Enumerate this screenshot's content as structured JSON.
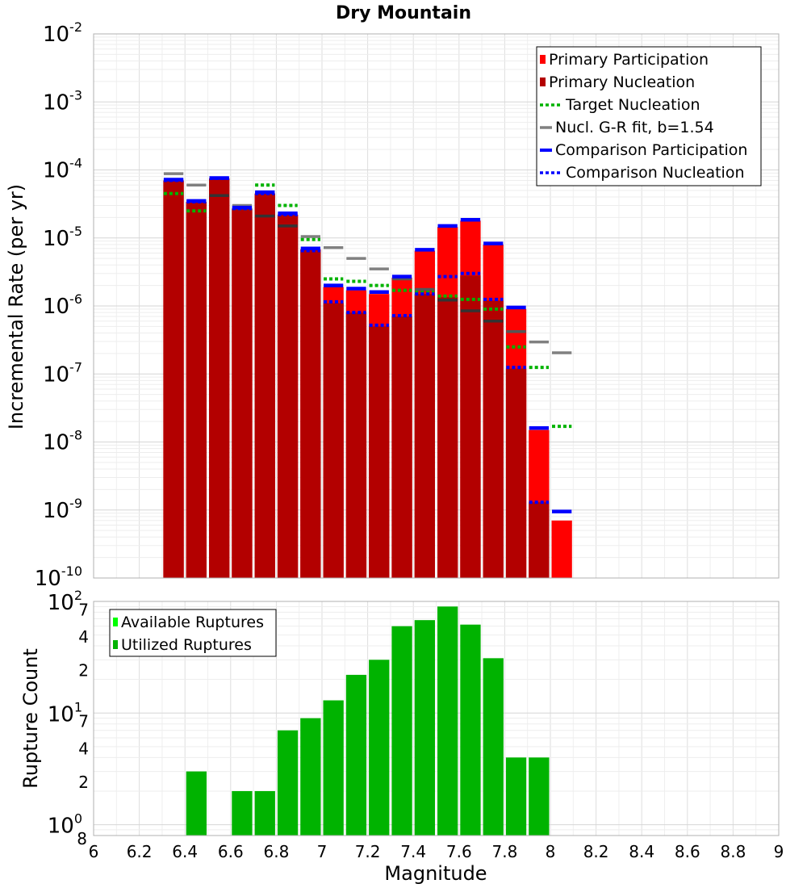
{
  "chart_data": [
    {
      "type": "bar",
      "title": "Dry Mountain",
      "ylabel": "Incremental Rate (per yr)",
      "y_scale": "log",
      "ylim": [
        1e-10,
        0.01
      ],
      "xlim": [
        6,
        9
      ],
      "grid": true,
      "legend_position": "top-right",
      "y_tick_labels": [
        "10^-10",
        "10^-9",
        "10^-8",
        "10^-7",
        "10^-6",
        "10^-5",
        "10^-4",
        "10^-3",
        "10^-2"
      ],
      "x": [
        6.35,
        6.45,
        6.55,
        6.65,
        6.75,
        6.85,
        6.95,
        7.05,
        7.15,
        7.25,
        7.35,
        7.45,
        7.55,
        7.65,
        7.75,
        7.85,
        7.95,
        8.05
      ],
      "series": [
        {
          "name": "Primary Participation",
          "style": "bar",
          "color": "#ff0000",
          "values": [
            7e-05,
            3.4e-05,
            7.5e-05,
            2.7e-05,
            4.5e-05,
            2.2e-05,
            6.8e-06,
            1.9e-06,
            1.7e-06,
            1.5e-06,
            2.6e-06,
            6.5e-06,
            1.45e-05,
            1.8e-05,
            8e-06,
            9e-07,
            1.5e-08,
            7e-10
          ]
        },
        {
          "name": "Primary Nucleation",
          "style": "bar",
          "color": "#b30000",
          "values": [
            7e-05,
            3.4e-05,
            7.5e-05,
            2.7e-05,
            4.5e-05,
            2.2e-05,
            6.8e-06,
            1.1e-06,
            8e-07,
            5e-07,
            7e-07,
            1.5e-06,
            1.35e-06,
            2.8e-06,
            1.2e-06,
            1.2e-07,
            1.3e-09,
            null
          ]
        },
        {
          "name": "Target Nucleation",
          "style": "dotted",
          "color": "#00b300",
          "values": [
            4.5e-05,
            2.5e-05,
            null,
            2.7e-05,
            6e-05,
            3e-05,
            9.5e-06,
            2.5e-06,
            2.3e-06,
            2e-06,
            1.7e-06,
            1.6e-06,
            1.4e-06,
            1.25e-06,
            9e-07,
            2.5e-07,
            1.25e-07,
            1.7e-08
          ]
        },
        {
          "name": "Nucl. G-R fit, b=1.54",
          "style": "solid",
          "color": "#808080",
          "values": [
            8.8e-05,
            6e-05,
            4.2e-05,
            3e-05,
            2.1e-05,
            1.5e-05,
            1.05e-05,
            7.2e-06,
            5e-06,
            3.5e-06,
            2.5e-06,
            1.75e-06,
            1.22e-06,
            8.5e-07,
            6e-07,
            4.2e-07,
            2.95e-07,
            2.05e-07
          ]
        },
        {
          "name": "Comparison Participation",
          "style": "solid-thick",
          "color": "#0000ff",
          "values": [
            7.2e-05,
            3.5e-05,
            7.6e-05,
            2.8e-05,
            4.7e-05,
            2.3e-05,
            7e-06,
            2e-06,
            1.8e-06,
            1.6e-06,
            2.7e-06,
            6.7e-06,
            1.5e-05,
            1.85e-05,
            8.3e-06,
            9.5e-07,
            1.6e-08,
            9.5e-10
          ]
        },
        {
          "name": "Comparison Nucleation",
          "style": "dotted",
          "color": "#0000ff",
          "values": [
            7e-05,
            3.4e-05,
            7.5e-05,
            2.7e-05,
            4.5e-05,
            2.2e-05,
            6.5e-06,
            1.15e-06,
            8e-07,
            5.2e-07,
            7.2e-07,
            1.5e-06,
            2.7e-06,
            3e-06,
            1.25e-06,
            1.25e-07,
            1.3e-09,
            null
          ]
        }
      ]
    },
    {
      "type": "bar",
      "title": "",
      "xlabel": "Magnitude",
      "ylabel": "Rupture Count",
      "y_scale": "log",
      "ylim": [
        0.8,
        100
      ],
      "xlim": [
        6,
        9
      ],
      "grid": true,
      "legend_position": "top-left",
      "x_tick_labels": [
        "6",
        "6.2",
        "6.4",
        "6.6",
        "6.8",
        "7",
        "7.2",
        "7.4",
        "7.6",
        "7.8",
        "8",
        "8.2",
        "8.4",
        "8.6",
        "8.8",
        "9"
      ],
      "y_tick_labels": [
        {
          "value": 1,
          "label": "10^0"
        },
        {
          "value": 2,
          "label": "2"
        },
        {
          "value": 4,
          "label": "4"
        },
        {
          "value": 7,
          "label": "7"
        },
        {
          "value": 10,
          "label": "10^1"
        },
        {
          "value": 20,
          "label": "2"
        },
        {
          "value": 40,
          "label": "4"
        },
        {
          "value": 70,
          "label": "7"
        },
        {
          "value": 100,
          "label": "10^2"
        },
        {
          "value": 0.8,
          "label": "8"
        }
      ],
      "x": [
        6.45,
        6.65,
        6.75,
        6.85,
        6.95,
        7.05,
        7.15,
        7.25,
        7.35,
        7.45,
        7.55,
        7.65,
        7.75,
        7.85,
        7.95
      ],
      "series": [
        {
          "name": "Available Ruptures",
          "color": "#00ff00",
          "values": [
            3,
            2,
            2,
            7,
            9,
            13,
            22,
            30,
            60,
            68,
            90,
            62,
            31,
            4,
            4
          ]
        },
        {
          "name": "Utilized Ruptures",
          "color": "#00b300",
          "values": [
            3,
            2,
            2,
            7,
            9,
            13,
            22,
            30,
            60,
            68,
            90,
            62,
            31,
            4,
            4
          ]
        }
      ]
    }
  ]
}
